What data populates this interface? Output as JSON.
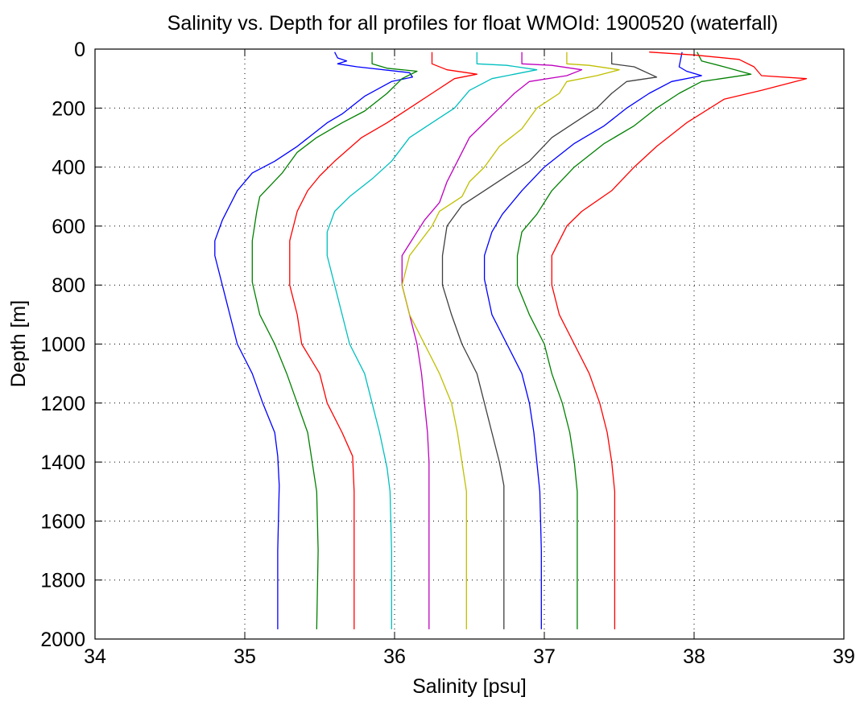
{
  "chart_data": {
    "type": "line",
    "title": "Salinity vs. Depth for all profiles for float WMOId: 1900520 (waterfall)",
    "xlabel": "Salinity [psu]",
    "ylabel": "Depth [m]",
    "xlim": [
      34,
      39
    ],
    "ylim": [
      0,
      2000
    ],
    "y_reversed": true,
    "grid": true,
    "x_ticks": [
      34,
      35,
      36,
      37,
      38,
      39
    ],
    "y_ticks": [
      0,
      200,
      400,
      600,
      800,
      1000,
      1200,
      1400,
      1600,
      1800,
      2000
    ],
    "series": [
      {
        "color": "#0000ff",
        "points": [
          [
            35.6,
            10
          ],
          [
            35.62,
            30
          ],
          [
            35.68,
            40
          ],
          [
            35.62,
            50
          ],
          [
            35.75,
            60
          ],
          [
            36.1,
            80
          ],
          [
            36.12,
            95
          ],
          [
            35.98,
            110
          ],
          [
            35.8,
            160
          ],
          [
            35.65,
            220
          ],
          [
            35.55,
            250
          ],
          [
            35.35,
            330
          ],
          [
            35.2,
            380
          ],
          [
            35.05,
            420
          ],
          [
            34.95,
            480
          ],
          [
            34.85,
            580
          ],
          [
            34.8,
            650
          ],
          [
            34.8,
            700
          ],
          [
            34.85,
            800
          ],
          [
            34.9,
            900
          ],
          [
            34.95,
            1000
          ],
          [
            35.05,
            1100
          ],
          [
            35.12,
            1200
          ],
          [
            35.2,
            1300
          ],
          [
            35.22,
            1380
          ],
          [
            35.23,
            1480
          ],
          [
            35.22,
            1700
          ],
          [
            35.22,
            1967
          ]
        ]
      },
      {
        "color": "#008000",
        "points": [
          [
            35.85,
            10
          ],
          [
            35.85,
            50
          ],
          [
            35.95,
            65
          ],
          [
            36.15,
            75
          ],
          [
            36.05,
            100
          ],
          [
            35.95,
            150
          ],
          [
            35.8,
            210
          ],
          [
            35.65,
            250
          ],
          [
            35.48,
            300
          ],
          [
            35.35,
            350
          ],
          [
            35.25,
            420
          ],
          [
            35.1,
            500
          ],
          [
            35.08,
            550
          ],
          [
            35.05,
            650
          ],
          [
            35.05,
            790
          ],
          [
            35.1,
            900
          ],
          [
            35.2,
            1000
          ],
          [
            35.28,
            1100
          ],
          [
            35.35,
            1200
          ],
          [
            35.42,
            1300
          ],
          [
            35.45,
            1400
          ],
          [
            35.48,
            1500
          ],
          [
            35.49,
            1700
          ],
          [
            35.48,
            1967
          ]
        ]
      },
      {
        "color": "#ff0000",
        "points": [
          [
            36.25,
            10
          ],
          [
            36.25,
            50
          ],
          [
            36.35,
            70
          ],
          [
            36.55,
            85
          ],
          [
            36.4,
            100
          ],
          [
            36.25,
            150
          ],
          [
            36.1,
            200
          ],
          [
            35.95,
            250
          ],
          [
            35.78,
            300
          ],
          [
            35.6,
            380
          ],
          [
            35.5,
            430
          ],
          [
            35.42,
            480
          ],
          [
            35.35,
            550
          ],
          [
            35.3,
            650
          ],
          [
            35.3,
            800
          ],
          [
            35.35,
            900
          ],
          [
            35.38,
            1000
          ],
          [
            35.5,
            1100
          ],
          [
            35.55,
            1200
          ],
          [
            35.65,
            1300
          ],
          [
            35.72,
            1380
          ],
          [
            35.73,
            1500
          ],
          [
            35.73,
            1700
          ],
          [
            35.73,
            1967
          ]
        ]
      },
      {
        "color": "#00bfbf",
        "points": [
          [
            36.55,
            10
          ],
          [
            36.55,
            50
          ],
          [
            36.75,
            55
          ],
          [
            36.95,
            70
          ],
          [
            36.8,
            85
          ],
          [
            36.65,
            100
          ],
          [
            36.5,
            140
          ],
          [
            36.4,
            200
          ],
          [
            36.25,
            250
          ],
          [
            36.1,
            300
          ],
          [
            35.98,
            380
          ],
          [
            35.85,
            440
          ],
          [
            35.7,
            500
          ],
          [
            35.6,
            550
          ],
          [
            35.55,
            620
          ],
          [
            35.55,
            700
          ],
          [
            35.6,
            800
          ],
          [
            35.65,
            900
          ],
          [
            35.7,
            1000
          ],
          [
            35.8,
            1100
          ],
          [
            35.85,
            1200
          ],
          [
            35.9,
            1300
          ],
          [
            35.95,
            1420
          ],
          [
            35.97,
            1500
          ],
          [
            35.98,
            1700
          ],
          [
            35.98,
            1967
          ]
        ]
      },
      {
        "color": "#bf00bf",
        "points": [
          [
            36.85,
            10
          ],
          [
            36.85,
            50
          ],
          [
            37.05,
            55
          ],
          [
            37.25,
            70
          ],
          [
            37.15,
            90
          ],
          [
            36.9,
            110
          ],
          [
            36.8,
            150
          ],
          [
            36.7,
            200
          ],
          [
            36.6,
            250
          ],
          [
            36.5,
            300
          ],
          [
            36.42,
            380
          ],
          [
            36.35,
            450
          ],
          [
            36.3,
            520
          ],
          [
            36.2,
            580
          ],
          [
            36.15,
            620
          ],
          [
            36.05,
            700
          ],
          [
            36.05,
            800
          ],
          [
            36.1,
            900
          ],
          [
            36.15,
            1000
          ],
          [
            36.18,
            1100
          ],
          [
            36.2,
            1200
          ],
          [
            36.22,
            1300
          ],
          [
            36.23,
            1400
          ],
          [
            36.23,
            1967
          ]
        ]
      },
      {
        "color": "#bfbf00",
        "points": [
          [
            37.15,
            10
          ],
          [
            37.15,
            50
          ],
          [
            37.3,
            55
          ],
          [
            37.5,
            70
          ],
          [
            37.35,
            90
          ],
          [
            37.15,
            110
          ],
          [
            37.1,
            150
          ],
          [
            36.95,
            200
          ],
          [
            36.85,
            270
          ],
          [
            36.7,
            330
          ],
          [
            36.6,
            400
          ],
          [
            36.5,
            450
          ],
          [
            36.45,
            500
          ],
          [
            36.3,
            550
          ],
          [
            36.25,
            600
          ],
          [
            36.1,
            700
          ],
          [
            36.05,
            800
          ],
          [
            36.1,
            900
          ],
          [
            36.2,
            1000
          ],
          [
            36.3,
            1100
          ],
          [
            36.38,
            1200
          ],
          [
            36.42,
            1300
          ],
          [
            36.45,
            1400
          ],
          [
            36.48,
            1500
          ],
          [
            36.48,
            1700
          ],
          [
            36.48,
            1967
          ]
        ]
      },
      {
        "color": "#404040",
        "points": [
          [
            37.45,
            10
          ],
          [
            37.45,
            50
          ],
          [
            37.6,
            60
          ],
          [
            37.75,
            95
          ],
          [
            37.55,
            110
          ],
          [
            37.45,
            150
          ],
          [
            37.35,
            200
          ],
          [
            37.2,
            250
          ],
          [
            37.05,
            300
          ],
          [
            36.9,
            380
          ],
          [
            36.75,
            430
          ],
          [
            36.6,
            480
          ],
          [
            36.45,
            530
          ],
          [
            36.35,
            600
          ],
          [
            36.32,
            700
          ],
          [
            36.32,
            800
          ],
          [
            36.38,
            900
          ],
          [
            36.45,
            1000
          ],
          [
            36.55,
            1100
          ],
          [
            36.6,
            1200
          ],
          [
            36.65,
            1300
          ],
          [
            36.7,
            1400
          ],
          [
            36.73,
            1480
          ],
          [
            36.73,
            1700
          ],
          [
            36.73,
            1967
          ]
        ]
      },
      {
        "color": "#0000ff",
        "points": [
          [
            37.92,
            10
          ],
          [
            37.9,
            60
          ],
          [
            37.95,
            75
          ],
          [
            38.05,
            90
          ],
          [
            37.85,
            110
          ],
          [
            37.7,
            150
          ],
          [
            37.55,
            200
          ],
          [
            37.4,
            260
          ],
          [
            37.2,
            320
          ],
          [
            37.0,
            400
          ],
          [
            36.85,
            480
          ],
          [
            36.72,
            560
          ],
          [
            36.65,
            620
          ],
          [
            36.6,
            700
          ],
          [
            36.6,
            780
          ],
          [
            36.65,
            900
          ],
          [
            36.75,
            1000
          ],
          [
            36.85,
            1100
          ],
          [
            36.9,
            1200
          ],
          [
            36.93,
            1300
          ],
          [
            36.95,
            1400
          ],
          [
            36.97,
            1500
          ],
          [
            36.98,
            1700
          ],
          [
            36.98,
            1967
          ]
        ]
      },
      {
        "color": "#008000",
        "points": [
          [
            38.02,
            10
          ],
          [
            38.05,
            40
          ],
          [
            38.2,
            60
          ],
          [
            38.38,
            85
          ],
          [
            38.05,
            110
          ],
          [
            37.9,
            150
          ],
          [
            37.75,
            200
          ],
          [
            37.6,
            260
          ],
          [
            37.4,
            320
          ],
          [
            37.2,
            400
          ],
          [
            37.05,
            480
          ],
          [
            36.95,
            560
          ],
          [
            36.85,
            620
          ],
          [
            36.82,
            700
          ],
          [
            36.82,
            800
          ],
          [
            36.9,
            900
          ],
          [
            37.0,
            1000
          ],
          [
            37.05,
            1100
          ],
          [
            37.12,
            1200
          ],
          [
            37.17,
            1300
          ],
          [
            37.2,
            1400
          ],
          [
            37.22,
            1500
          ],
          [
            37.22,
            1700
          ],
          [
            37.22,
            1967
          ]
        ]
      },
      {
        "color": "#ff0000",
        "points": [
          [
            37.7,
            10
          ],
          [
            38.0,
            20
          ],
          [
            38.3,
            35
          ],
          [
            38.4,
            60
          ],
          [
            38.45,
            90
          ],
          [
            38.75,
            100
          ],
          [
            38.45,
            140
          ],
          [
            38.2,
            170
          ],
          [
            37.95,
            250
          ],
          [
            37.75,
            330
          ],
          [
            37.6,
            400
          ],
          [
            37.45,
            480
          ],
          [
            37.25,
            550
          ],
          [
            37.15,
            600
          ],
          [
            37.05,
            700
          ],
          [
            37.05,
            800
          ],
          [
            37.1,
            900
          ],
          [
            37.2,
            1000
          ],
          [
            37.3,
            1100
          ],
          [
            37.37,
            1200
          ],
          [
            37.42,
            1300
          ],
          [
            37.45,
            1400
          ],
          [
            37.47,
            1500
          ],
          [
            37.47,
            1700
          ],
          [
            37.47,
            1967
          ]
        ]
      }
    ]
  }
}
